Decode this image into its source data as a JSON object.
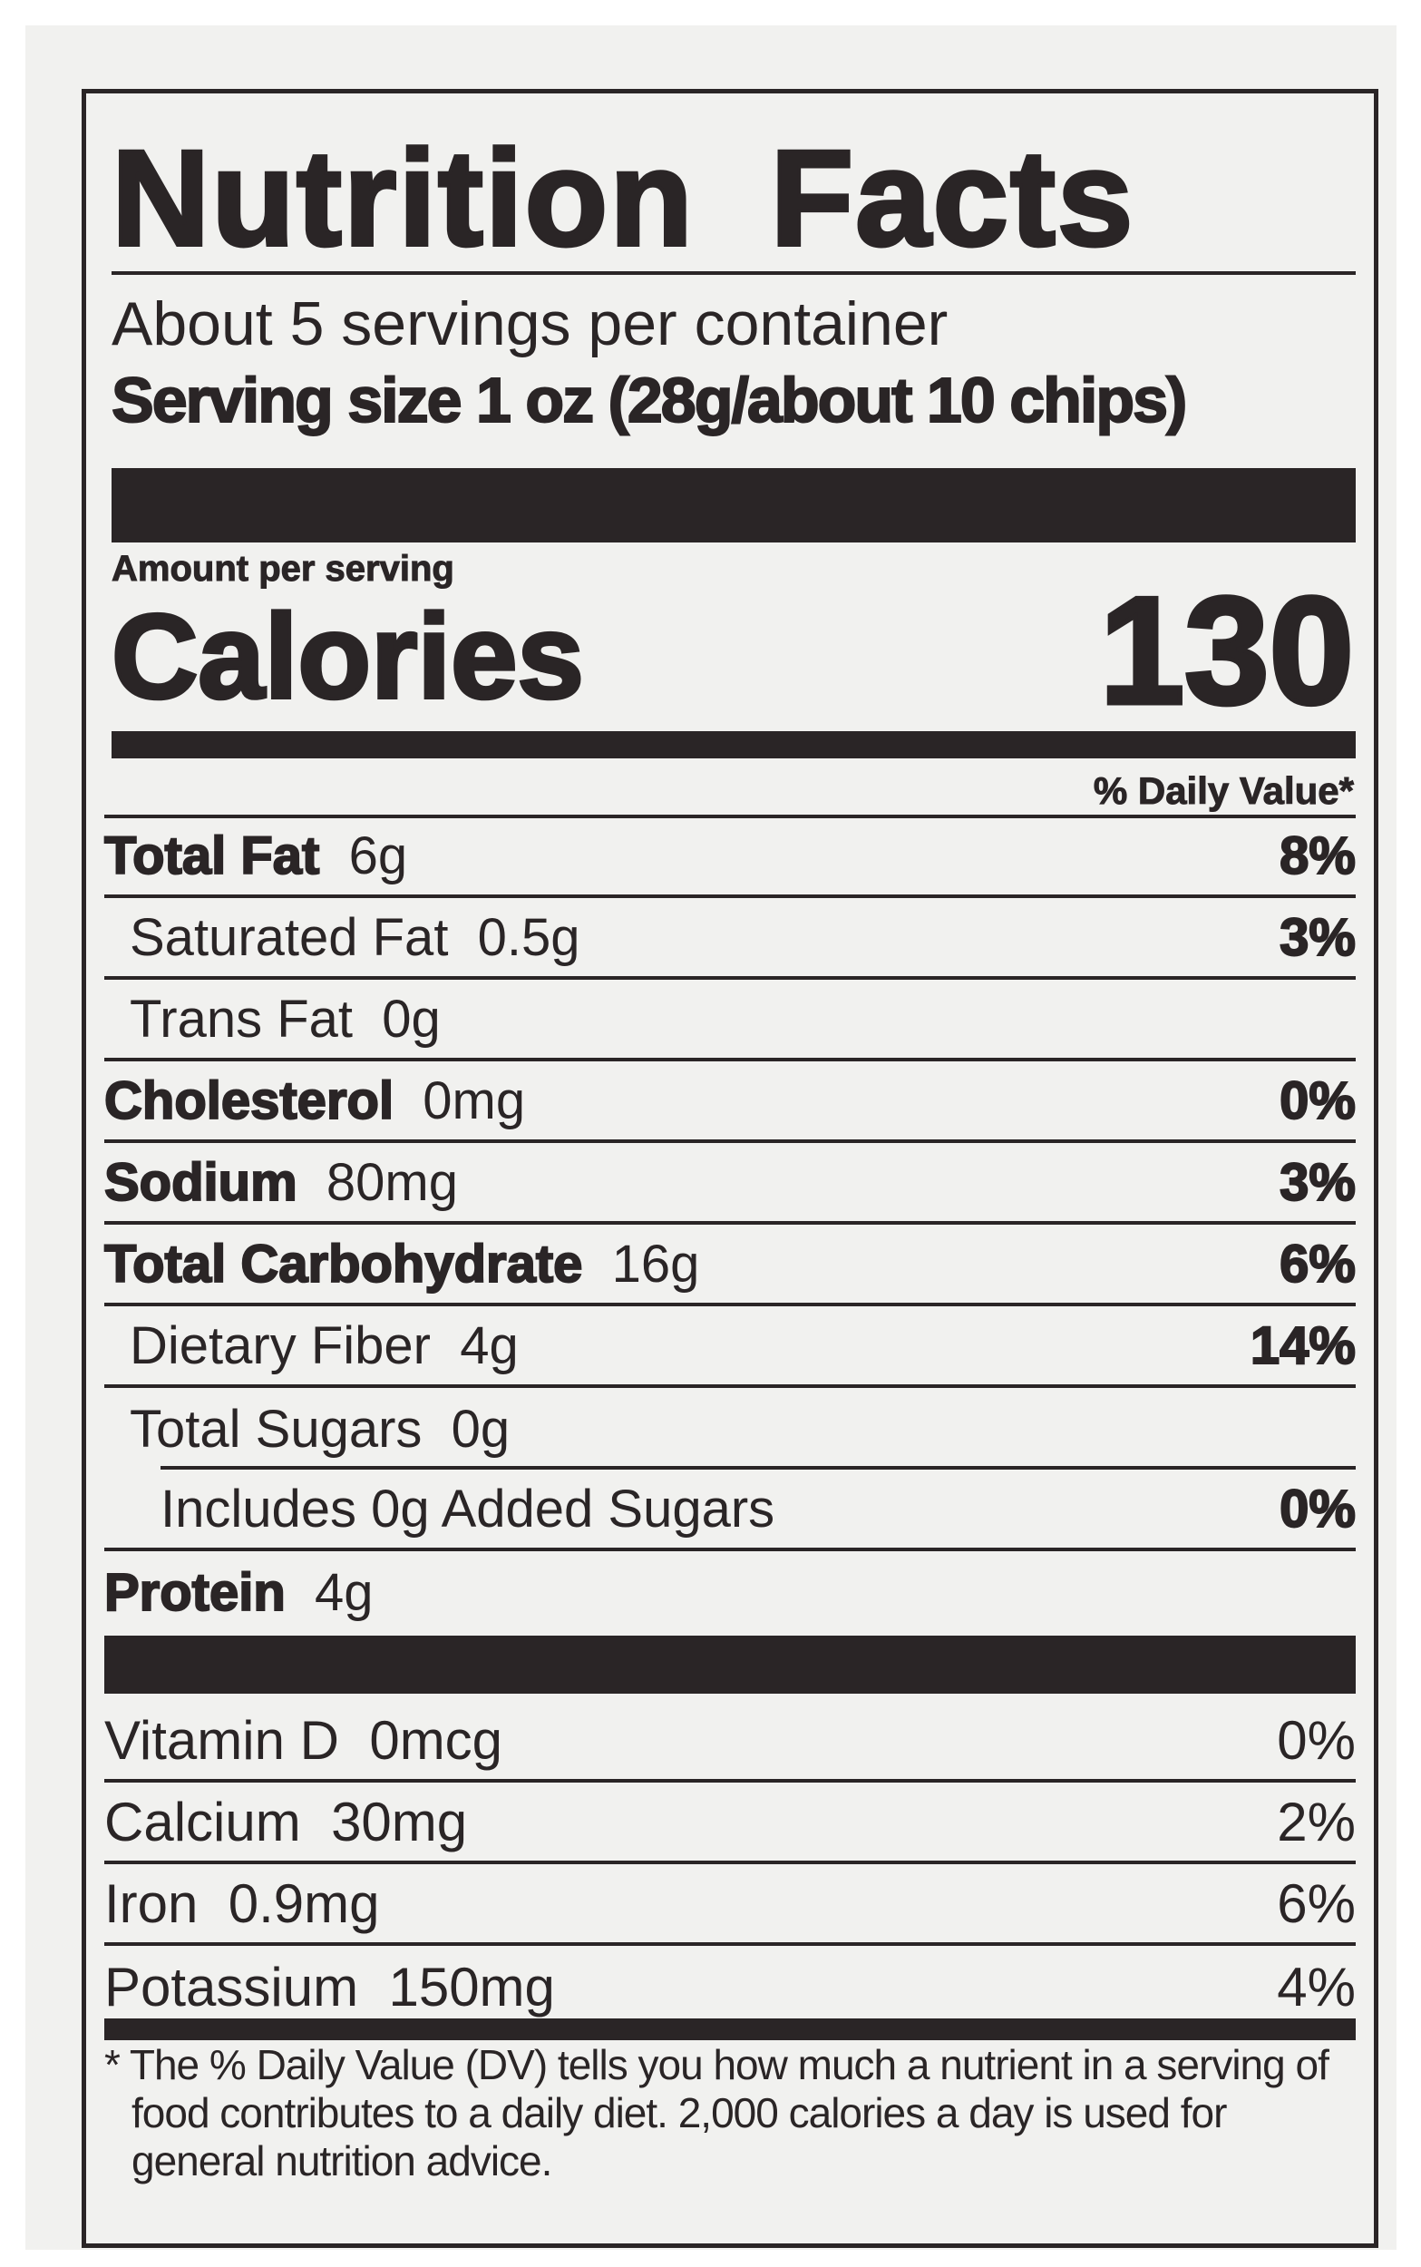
{
  "title": "Nutrition Facts",
  "servings_per_container": "About 5 servings per container",
  "serving_size": "Serving size 1 oz (28g/about 10 chips)",
  "amount_per_serving": "Amount per serving",
  "calories_label": "Calories",
  "calories_value": "130",
  "daily_value_header": "% Daily Value*",
  "nutrients": [
    {
      "name": "Total Fat",
      "amount": "6g",
      "dv": "8%"
    },
    {
      "name": "Saturated Fat",
      "amount": "0.5g",
      "dv": "3%"
    },
    {
      "name": "Trans Fat",
      "amount": "0g",
      "dv": ""
    },
    {
      "name": "Cholesterol",
      "amount": "0mg",
      "dv": "0%"
    },
    {
      "name": "Sodium",
      "amount": "80mg",
      "dv": "3%"
    },
    {
      "name": "Total Carbohydrate",
      "amount": "16g",
      "dv": "6%"
    },
    {
      "name": "Dietary Fiber",
      "amount": "4g",
      "dv": "14%"
    },
    {
      "name": "Total Sugars",
      "amount": "0g",
      "dv": ""
    },
    {
      "name": "Includes 0g Added Sugars",
      "amount": "",
      "dv": "0%"
    },
    {
      "name": "Protein",
      "amount": "4g",
      "dv": ""
    }
  ],
  "vitamins": [
    {
      "name": "Vitamin D",
      "amount": "0mcg",
      "dv": "0%"
    },
    {
      "name": "Calcium",
      "amount": "30mg",
      "dv": "2%"
    },
    {
      "name": "Iron",
      "amount": "0.9mg",
      "dv": "6%"
    },
    {
      "name": "Potassium",
      "amount": "150mg",
      "dv": "4%"
    }
  ],
  "footnote": "* The % Daily Value (DV) tells you how much a nutrient in a serving of food contributes to a daily diet. 2,000 calories a day is used for general nutrition advice.",
  "colors": {
    "ink": "#2a2526",
    "background": "#f1f1ef"
  }
}
